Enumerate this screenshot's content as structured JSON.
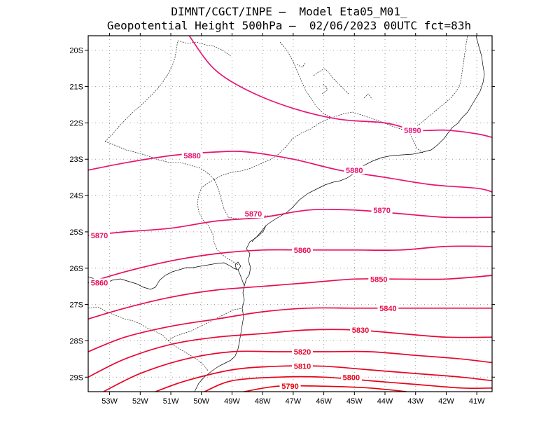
{
  "title": {
    "line1": "DIMNT/CGCT/INPE –  Model Eta05_M01_",
    "line2": "Geopotential Height 500hPa –  02/06/2023 00UTC fct=83h"
  },
  "colors": {
    "contour_low": "#e8000b",
    "contour_high": "#e8157a",
    "grid": "#9a9a9a",
    "coastline": "#000000"
  },
  "chart_data": {
    "type": "contour",
    "variable": "Geopotential Height 500hPa",
    "lon_range": [
      -53.7,
      -40.5
    ],
    "lat_range": [
      -29.4,
      -19.6
    ],
    "x_ticks": [
      {
        "value": -53,
        "label": "53W"
      },
      {
        "value": -52,
        "label": "52W"
      },
      {
        "value": -51,
        "label": "51W"
      },
      {
        "value": -50,
        "label": "50W"
      },
      {
        "value": -49,
        "label": "49W"
      },
      {
        "value": -48,
        "label": "48W"
      },
      {
        "value": -47,
        "label": "47W"
      },
      {
        "value": -46,
        "label": "46W"
      },
      {
        "value": -45,
        "label": "45W"
      },
      {
        "value": -44,
        "label": "44W"
      },
      {
        "value": -43,
        "label": "43W"
      },
      {
        "value": -42,
        "label": "42W"
      },
      {
        "value": -41,
        "label": "41W"
      }
    ],
    "y_ticks": [
      {
        "value": -20,
        "label": "20S"
      },
      {
        "value": -21,
        "label": "21S"
      },
      {
        "value": -22,
        "label": "22S"
      },
      {
        "value": -23,
        "label": "23S"
      },
      {
        "value": -24,
        "label": "24S"
      },
      {
        "value": -25,
        "label": "25S"
      },
      {
        "value": -26,
        "label": "26S"
      },
      {
        "value": -27,
        "label": "27S"
      },
      {
        "value": -28,
        "label": "28S"
      },
      {
        "value": -29,
        "label": "29S"
      }
    ],
    "grid": true,
    "contours": [
      {
        "level": 5890,
        "label": "5890",
        "points": [
          [
            -50.4,
            -19.6
          ],
          [
            -49.6,
            -20.5
          ],
          [
            -48.5,
            -21.1
          ],
          [
            -47.0,
            -21.6
          ],
          [
            -45.5,
            -21.9
          ],
          [
            -44.0,
            -22.0
          ],
          [
            -43.0,
            -22.2
          ],
          [
            -42.0,
            -22.2
          ],
          [
            -41.0,
            -22.3
          ],
          [
            -40.5,
            -22.4
          ]
        ],
        "labels": [
          {
            "lon": -43.1,
            "lat": -22.2
          }
        ]
      },
      {
        "level": 5880,
        "label": "5880",
        "points": [
          [
            -53.7,
            -23.3
          ],
          [
            -52.5,
            -23.1
          ],
          [
            -51.0,
            -22.9
          ],
          [
            -49.5,
            -22.8
          ],
          [
            -48.5,
            -22.8
          ],
          [
            -47.0,
            -23.0
          ],
          [
            -45.5,
            -23.3
          ],
          [
            -44.0,
            -23.5
          ],
          [
            -42.5,
            -23.7
          ],
          [
            -41.0,
            -23.8
          ],
          [
            -40.5,
            -23.9
          ]
        ],
        "labels": [
          {
            "lon": -50.3,
            "lat": -22.9
          },
          {
            "lon": -45.0,
            "lat": -23.3
          }
        ]
      },
      {
        "level": 5870,
        "label": "5870",
        "points": [
          [
            -53.7,
            -25.1
          ],
          [
            -52.5,
            -25.0
          ],
          [
            -51.0,
            -24.9
          ],
          [
            -49.5,
            -24.7
          ],
          [
            -48.0,
            -24.6
          ],
          [
            -46.5,
            -24.4
          ],
          [
            -45.0,
            -24.4
          ],
          [
            -43.5,
            -24.5
          ],
          [
            -42.0,
            -24.6
          ],
          [
            -40.5,
            -24.6
          ]
        ],
        "labels": [
          {
            "lon": -53.4,
            "lat": -25.1
          },
          {
            "lon": -48.3,
            "lat": -24.5
          },
          {
            "lon": -44.1,
            "lat": -24.4
          }
        ]
      },
      {
        "level": 5860,
        "label": "5860",
        "points": [
          [
            -53.7,
            -26.4
          ],
          [
            -52.5,
            -26.1
          ],
          [
            -51.0,
            -25.8
          ],
          [
            -49.5,
            -25.6
          ],
          [
            -48.0,
            -25.5
          ],
          [
            -46.5,
            -25.5
          ],
          [
            -45.0,
            -25.5
          ],
          [
            -43.5,
            -25.5
          ],
          [
            -42.0,
            -25.4
          ],
          [
            -40.5,
            -25.4
          ]
        ],
        "labels": [
          {
            "lon": -53.5,
            "lat": -26.4
          },
          {
            "lon": -46.7,
            "lat": -25.5
          }
        ]
      },
      {
        "level": 5850,
        "label": "5850",
        "points": [
          [
            -53.7,
            -27.4
          ],
          [
            -52.5,
            -27.1
          ],
          [
            -51.0,
            -26.8
          ],
          [
            -49.5,
            -26.6
          ],
          [
            -48.0,
            -26.5
          ],
          [
            -46.5,
            -26.4
          ],
          [
            -45.0,
            -26.3
          ],
          [
            -43.5,
            -26.3
          ],
          [
            -42.0,
            -26.3
          ],
          [
            -40.5,
            -26.2
          ]
        ],
        "labels": [
          {
            "lon": -44.2,
            "lat": -26.3
          }
        ]
      },
      {
        "level": 5840,
        "label": "5840",
        "points": [
          [
            -53.7,
            -28.3
          ],
          [
            -52.5,
            -27.9
          ],
          [
            -51.0,
            -27.6
          ],
          [
            -49.5,
            -27.4
          ],
          [
            -48.0,
            -27.2
          ],
          [
            -46.5,
            -27.1
          ],
          [
            -45.0,
            -27.1
          ],
          [
            -43.5,
            -27.1
          ],
          [
            -42.0,
            -27.1
          ],
          [
            -40.5,
            -27.1
          ]
        ],
        "labels": [
          {
            "lon": -43.9,
            "lat": -27.1
          }
        ]
      },
      {
        "level": 5830,
        "label": "5830",
        "points": [
          [
            -53.7,
            -29.0
          ],
          [
            -52.5,
            -28.5
          ],
          [
            -51.0,
            -28.1
          ],
          [
            -49.5,
            -27.9
          ],
          [
            -48.0,
            -27.8
          ],
          [
            -46.5,
            -27.7
          ],
          [
            -45.0,
            -27.7
          ],
          [
            -43.5,
            -27.8
          ],
          [
            -42.0,
            -27.9
          ],
          [
            -40.5,
            -27.9
          ]
        ],
        "labels": [
          {
            "lon": -44.8,
            "lat": -27.7
          }
        ]
      },
      {
        "level": 5820,
        "label": "5820",
        "points": [
          [
            -53.2,
            -29.4
          ],
          [
            -52.0,
            -28.9
          ],
          [
            -50.5,
            -28.5
          ],
          [
            -49.0,
            -28.3
          ],
          [
            -47.5,
            -28.3
          ],
          [
            -46.0,
            -28.3
          ],
          [
            -44.5,
            -28.3
          ],
          [
            -43.0,
            -28.4
          ],
          [
            -41.5,
            -28.5
          ],
          [
            -40.5,
            -28.6
          ]
        ],
        "labels": [
          {
            "lon": -46.7,
            "lat": -28.3
          }
        ]
      },
      {
        "level": 5810,
        "label": "5810",
        "points": [
          [
            -51.5,
            -29.4
          ],
          [
            -50.5,
            -29.1
          ],
          [
            -49.0,
            -28.8
          ],
          [
            -47.5,
            -28.7
          ],
          [
            -46.0,
            -28.7
          ],
          [
            -44.5,
            -28.8
          ],
          [
            -43.0,
            -28.9
          ],
          [
            -41.5,
            -29.0
          ],
          [
            -40.5,
            -29.1
          ]
        ],
        "labels": [
          {
            "lon": -46.7,
            "lat": -28.7
          }
        ]
      },
      {
        "level": 5800,
        "label": "5800",
        "points": [
          [
            -49.9,
            -29.4
          ],
          [
            -49.0,
            -29.1
          ],
          [
            -47.5,
            -29.0
          ],
          [
            -46.0,
            -29.0
          ],
          [
            -44.5,
            -29.1
          ],
          [
            -43.0,
            -29.2
          ],
          [
            -41.5,
            -29.3
          ],
          [
            -40.5,
            -29.3
          ]
        ],
        "labels": [
          {
            "lon": -45.1,
            "lat": -29.0
          }
        ]
      },
      {
        "level": 5790,
        "label": "5790",
        "points": [
          [
            -48.6,
            -29.4
          ],
          [
            -47.5,
            -29.25
          ],
          [
            -46.0,
            -29.25
          ],
          [
            -44.5,
            -29.3
          ],
          [
            -43.3,
            -29.4
          ]
        ],
        "labels": [
          {
            "lon": -47.1,
            "lat": -29.25
          }
        ]
      }
    ]
  }
}
